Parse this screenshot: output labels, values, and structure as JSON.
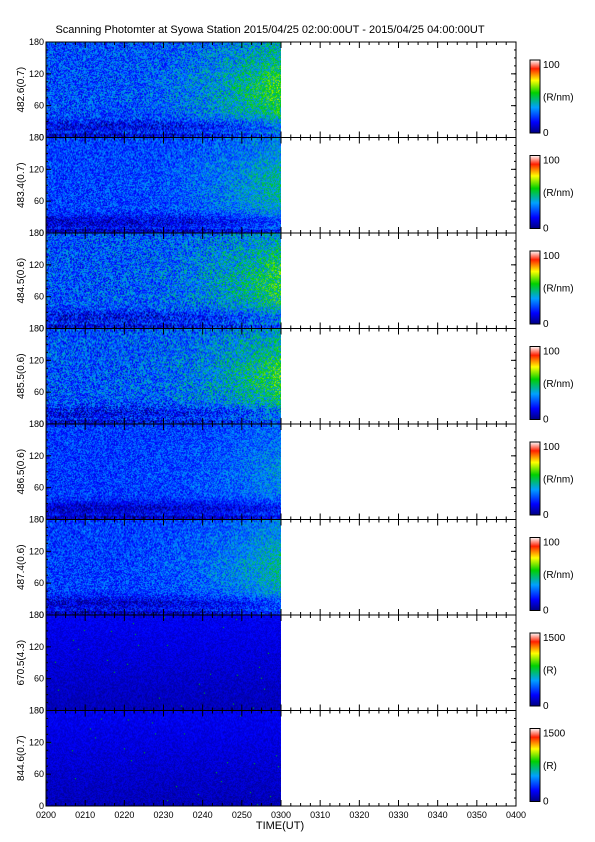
{
  "title": "Scanning Photomter at Syowa Station  2015/04/25 02:00:00UT - 2015/04/25 04:00:00UT",
  "chart_data": {
    "type": "heatmap",
    "xlabel": "TIME(UT)",
    "x_ticks": [
      "0200",
      "0210",
      "0220",
      "0230",
      "0240",
      "0250",
      "0300",
      "0310",
      "0320",
      "0330",
      "0340",
      "0350",
      "0400"
    ],
    "x_range": [
      "0200",
      "0400"
    ],
    "data_end": "0300",
    "y_ticks": [
      0,
      60,
      120,
      180
    ],
    "y_range": [
      0,
      180
    ],
    "panels": [
      {
        "ylabel": "482.6(0.7)",
        "cb_max": "100",
        "cb_min": "0",
        "cb_unit": "(R/nm)",
        "intensity": 0.75,
        "edge": 0.9
      },
      {
        "ylabel": "483.4(0.7)",
        "cb_max": "100",
        "cb_min": "0",
        "cb_unit": "(R/nm)",
        "intensity": 0.55,
        "edge": 0.6
      },
      {
        "ylabel": "484.5(0.6)",
        "cb_max": "100",
        "cb_min": "0",
        "cb_unit": "(R/nm)",
        "intensity": 0.85,
        "edge": 0.8
      },
      {
        "ylabel": "485.5(0.6)",
        "cb_max": "100",
        "cb_min": "0",
        "cb_unit": "(R/nm)",
        "intensity": 0.85,
        "edge": 0.8
      },
      {
        "ylabel": "486.5(0.6)",
        "cb_max": "100",
        "cb_min": "0",
        "cb_unit": "(R/nm)",
        "intensity": 0.45,
        "edge": 0.35
      },
      {
        "ylabel": "487.4(0.6)",
        "cb_max": "100",
        "cb_min": "0",
        "cb_unit": "(R/nm)",
        "intensity": 0.5,
        "edge": 0.6
      },
      {
        "ylabel": "670.5(4.3)",
        "cb_max": "1500",
        "cb_min": "0",
        "cb_unit": "(R)",
        "intensity": 0.12,
        "edge": 0.0
      },
      {
        "ylabel": "844.6(0.7)",
        "cb_max": "1500",
        "cb_min": "0",
        "cb_unit": "(R)",
        "intensity": 0.08,
        "edge": 0.0
      }
    ]
  }
}
